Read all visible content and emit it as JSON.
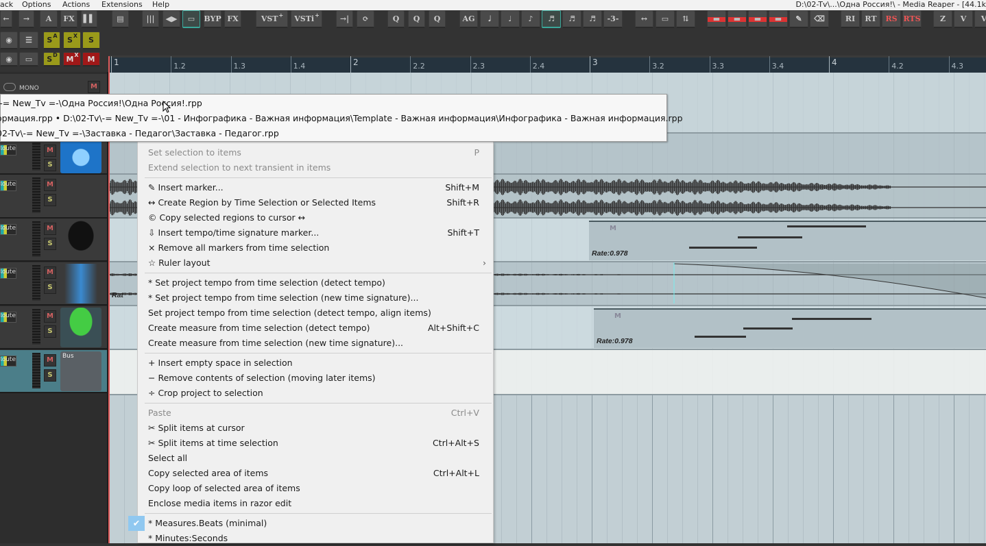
{
  "menubar": {
    "items": [
      "ack",
      "Options",
      "Actions",
      "Extensions",
      "Help"
    ],
    "title": "D:\\02-Tv\\...\\Одна Россия!\\ - Media Reaper - [44.1k"
  },
  "toolbar": {
    "buttons": [
      {
        "icon": "arrow-left-icon",
        "label": "←"
      },
      {
        "icon": "arrow-right-icon",
        "label": "→"
      },
      {
        "icon": "auto-icon",
        "label": "A"
      },
      {
        "icon": "fx-icon",
        "label": "FX"
      },
      {
        "icon": "piano-icon",
        "label": "▌▌"
      },
      {
        "icon": "clapper-icon",
        "label": "▤"
      },
      {
        "icon": "mixer-icon",
        "label": "|||"
      },
      {
        "icon": "speaker-icon",
        "label": "◀▶"
      },
      {
        "icon": "item-icon",
        "label": "▭"
      },
      {
        "icon": "bypass-icon",
        "label": "BYP"
      },
      {
        "icon": "fx-chain-icon",
        "label": "FX"
      },
      {
        "icon": "vst-icon",
        "label": "VST"
      },
      {
        "icon": "vsti-icon",
        "label": "VSTi"
      },
      {
        "icon": "split-cursor-icon",
        "label": "→|"
      },
      {
        "icon": "loop-icon",
        "label": "⟳"
      },
      {
        "icon": "quantize-icon",
        "label": "Q"
      },
      {
        "icon": "quantize-arrow-icon",
        "label": "Q"
      },
      {
        "icon": "quantize-grid-icon",
        "label": "Q"
      },
      {
        "icon": "auto-grid-icon",
        "label": "AG"
      },
      {
        "icon": "half-note-icon",
        "label": "𝅗𝅥"
      },
      {
        "icon": "quarter-note-icon",
        "label": "♩"
      },
      {
        "icon": "eighth-note-icon",
        "label": "♪"
      },
      {
        "icon": "sixteenth-note-icon",
        "label": "♬"
      },
      {
        "icon": "thirtysecond-note-icon",
        "label": "♬"
      },
      {
        "icon": "sixtyfourth-note-icon",
        "label": "♬"
      },
      {
        "icon": "triplet-icon",
        "label": "-3-"
      },
      {
        "icon": "stretch-icon",
        "label": "↔"
      },
      {
        "icon": "fit-icon",
        "label": "▭"
      },
      {
        "icon": "move-icon",
        "label": "⇅"
      },
      {
        "icon": "cut-red-icon",
        "label": "▬"
      },
      {
        "icon": "cut-red-2-icon",
        "label": "▬"
      },
      {
        "icon": "cut-red-3-icon",
        "label": "▬"
      },
      {
        "icon": "cut-red-4-icon",
        "label": "▬"
      },
      {
        "icon": "pencil-icon",
        "label": "✎"
      },
      {
        "icon": "eraser-icon",
        "label": "⌫"
      },
      {
        "icon": "ri-icon",
        "label": "RI"
      },
      {
        "icon": "rt-icon",
        "label": "RT"
      },
      {
        "icon": "rs-icon",
        "label": "RS"
      },
      {
        "icon": "rts-icon",
        "label": "RTS"
      },
      {
        "icon": "zoom-z-icon",
        "label": "Z"
      },
      {
        "icon": "zoom-v-icon",
        "label": "V"
      },
      {
        "icon": "zoom-v2-icon",
        "label": "V"
      }
    ],
    "row2": [
      {
        "icon": "eye-icon",
        "label": "◉"
      },
      {
        "icon": "list-icon",
        "label": "☰"
      },
      {
        "icon": "solo-a-icon",
        "label": "S",
        "sup": "A"
      },
      {
        "icon": "solo-x-icon",
        "label": "S",
        "sup": "X"
      },
      {
        "icon": "solo-icon",
        "label": "S"
      }
    ],
    "row3": [
      {
        "icon": "eye-check-icon",
        "label": "◉"
      },
      {
        "icon": "folder-icon",
        "label": "▭"
      },
      {
        "icon": "solo-d-icon",
        "label": "S",
        "sup": "D"
      },
      {
        "icon": "mute-x-icon",
        "label": "M",
        "sup": "X"
      },
      {
        "icon": "mute-icon",
        "label": "M"
      }
    ],
    "vst_plus": "+"
  },
  "ruler": {
    "labels": [
      "1",
      "1.2",
      "1.3",
      "1.4",
      "2",
      "2.2",
      "2.3",
      "2.4",
      "3",
      "3.2",
      "3.3",
      "3.4",
      "4",
      "4.2",
      "4.3"
    ]
  },
  "tracks": {
    "mono_label": "MONO",
    "route_label": "Route",
    "mute": "M",
    "solo": "S",
    "bus_label": "Bus"
  },
  "tooltip": {
    "lines": [
      "\\-= New_Tv =-\\Одна Россия!\\Одна Россия!.rpp",
      "ормация.rpp • D:\\02-Tv\\-= New_Tv =-\\01 - Инфографика - Важная информация\\Template - Важная информация\\Инфографика - Важная информация.rpp",
      "02-Tv\\-= New_Tv =-\\Заставка - Педагог\\Заставка - Педагог.rpp"
    ]
  },
  "arrange": {
    "rate_label": "Rate:0.978",
    "rate_cut": "Rat",
    "item_m": "M"
  },
  "context_menu": {
    "sections": [
      [
        {
          "label": "Set selection to items",
          "shortcut": "P",
          "disabled": true
        },
        {
          "label": "Extend selection to next transient in items",
          "disabled": true
        }
      ],
      [
        {
          "label": "✎ Insert marker...",
          "shortcut": "Shift+M"
        },
        {
          "label": "↔ Create Region by Time Selection or Selected Items",
          "shortcut": "Shift+R"
        },
        {
          "label": "© Copy selected regions to cursor ↔"
        },
        {
          "label": "⇩ Insert tempo/time signature marker...",
          "shortcut": "Shift+T"
        },
        {
          "label": "× Remove all markers from time selection"
        },
        {
          "label": "☆ Ruler layout",
          "submenu": true
        }
      ],
      [
        {
          "label": "* Set project tempo from time selection (detect tempo)"
        },
        {
          "label": "* Set project tempo from time selection (new time signature)..."
        },
        {
          "label": "Set project tempo from time selection (detect tempo, align items)"
        },
        {
          "label": "Create measure from time selection (detect tempo)",
          "shortcut": "Alt+Shift+C"
        },
        {
          "label": "Create measure from time selection (new time signature)..."
        }
      ],
      [
        {
          "label": "+ Insert empty space in selection"
        },
        {
          "label": "− Remove contents of selection (moving later items)"
        },
        {
          "label": "÷ Crop project to selection"
        }
      ],
      [
        {
          "label": "Paste",
          "shortcut": "Ctrl+V",
          "disabled": true
        },
        {
          "label": "✂ Split items at cursor"
        },
        {
          "label": "✂ Split items at time selection",
          "shortcut": "Ctrl+Alt+S"
        },
        {
          "label": "Select all"
        },
        {
          "label": "Copy selected area of items",
          "shortcut": "Ctrl+Alt+L"
        },
        {
          "label": "Copy loop of selected area of items"
        },
        {
          "label": "Enclose media items in razor edit"
        }
      ],
      [
        {
          "label": "* Measures.Beats (minimal)",
          "checked": true
        },
        {
          "label": "* Minutes:Seconds"
        }
      ]
    ],
    "check_glyph": "✔",
    "submenu_glyph": "›"
  },
  "colors": {
    "accent": "#3aa89a",
    "ruler_bg": "#25333e",
    "arrange_bg": "#c2cfd4",
    "mute": "#a01818",
    "solo": "#9a9a1a",
    "check": "#90c8f0"
  }
}
